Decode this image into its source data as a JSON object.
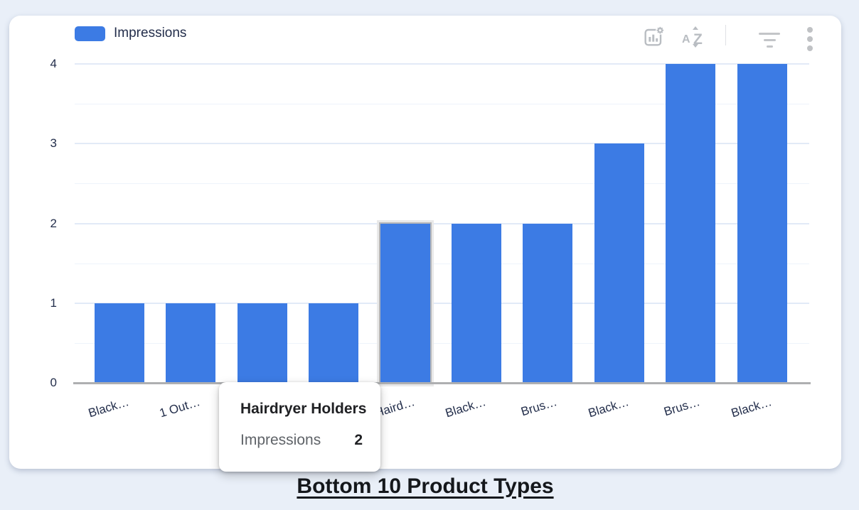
{
  "legend": {
    "label": "Impressions",
    "swatch_color": "#3c7be4"
  },
  "toolbar": {
    "icons": [
      "chart-settings-icon",
      "sort-az-icon",
      "filter-icon",
      "more-options-icon"
    ]
  },
  "chart_data": {
    "type": "bar",
    "title": "Bottom 10 Product Types",
    "series_name": "Impressions",
    "categories": [
      "Black…",
      "1 Out…",
      "",
      "",
      "Haird…",
      "Black…",
      "Brus…",
      "Black…",
      "Brus…",
      "Black…"
    ],
    "values": [
      1,
      1,
      1,
      1,
      2,
      2,
      2,
      3,
      4,
      4
    ],
    "y_ticks": [
      0,
      1,
      2,
      3,
      4
    ],
    "ylim": [
      0,
      4
    ],
    "bar_color": "#3c7be4",
    "highlighted_index": 4,
    "grid": true,
    "legend_position": "top-left",
    "note_hidden_categories": "categories at index 2 and 3 are covered by the tooltip"
  },
  "tooltip": {
    "title": "Hairdryer Holders",
    "metric_label": "Impressions",
    "metric_value": "2"
  },
  "footer": {
    "title": "Bottom 10 Product Types"
  }
}
